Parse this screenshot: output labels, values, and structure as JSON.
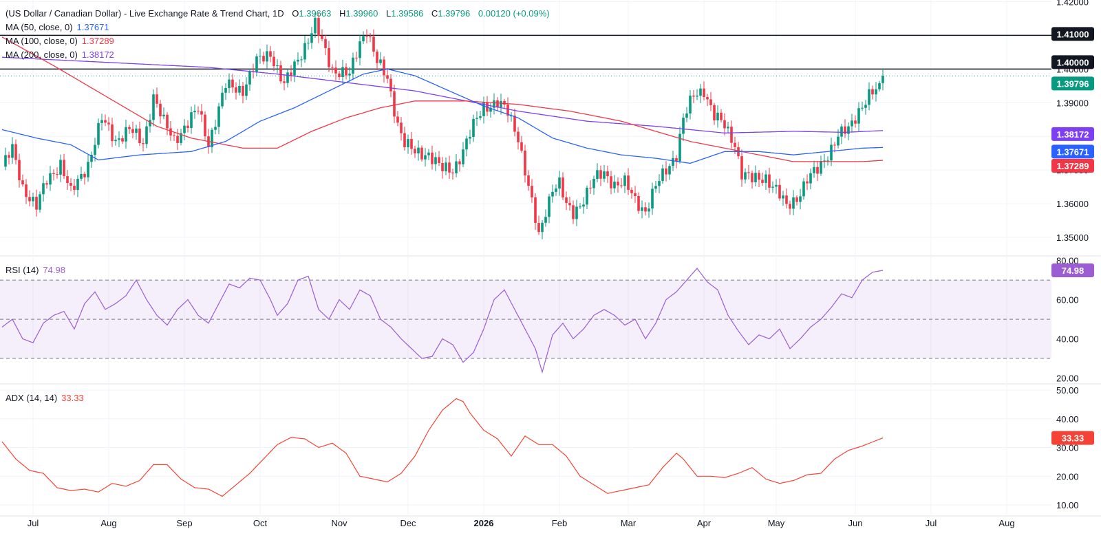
{
  "header": {
    "title": "(US Dollar / Canadian Dollar) - Live Exchange Rate & Trend Chart, 1D",
    "open_label": "O",
    "open": "1.39663",
    "high_label": "H",
    "high": "1.39960",
    "low_label": "L",
    "low": "1.39586",
    "close_label": "C",
    "close": "1.39796",
    "change": "0.00120 (+0.09%)"
  },
  "legend": {
    "ma50_label": "MA (50, close, 0)",
    "ma50_value": "1.37671",
    "ma100_label": "MA (100, close, 0)",
    "ma100_value": "1.37289",
    "ma200_label": "MA (200, close, 0)",
    "ma200_value": "1.38172"
  },
  "rsi_panel": {
    "label": "RSI (14)",
    "value": "74.98"
  },
  "adx_panel": {
    "label": "ADX (14, 14)",
    "value": "33.33"
  },
  "colors": {
    "up": "#089981",
    "down": "#f23645",
    "ma50": "#2962ff",
    "ma100": "#f23645",
    "ma200": "#7e3ff2",
    "rsi": "#9c5cd4",
    "adx": "#f44336",
    "grid": "#f0f3fa",
    "axis_text": "#131722",
    "level": "#131722"
  },
  "chart_data": [
    {
      "type": "candlestick",
      "title": "(US Dollar / Canadian Dollar) - Live Exchange Rate & Trend Chart, 1D",
      "x_tick_labels": [
        "Jul",
        "Aug",
        "Sep",
        "Oct",
        "Nov",
        "Dec",
        "2026",
        "Feb",
        "Mar",
        "Apr",
        "May",
        "Jun",
        "Jul",
        "Aug"
      ],
      "y_ticks": [
        1.35,
        1.36,
        1.37,
        1.38,
        1.39,
        1.4,
        1.41,
        1.42
      ],
      "y_tick_labels": [
        "1.35000",
        "1.36000",
        "1.37000",
        "1.38000",
        "1.39000",
        "1.40000",
        "1.41000",
        "1.42000"
      ],
      "ylim": [
        1.3445,
        1.4205
      ],
      "price_path": [
        [
          0,
          1.371
        ],
        [
          3,
          1.376
        ],
        [
          6,
          1.365
        ],
        [
          10,
          1.359
        ],
        [
          13,
          1.367
        ],
        [
          17,
          1.372
        ],
        [
          20,
          1.363
        ],
        [
          25,
          1.372
        ],
        [
          29,
          1.385
        ],
        [
          33,
          1.379
        ],
        [
          37,
          1.382
        ],
        [
          41,
          1.378
        ],
        [
          44,
          1.392
        ],
        [
          47,
          1.384
        ],
        [
          50,
          1.379
        ],
        [
          54,
          1.384
        ],
        [
          57,
          1.388
        ],
        [
          60,
          1.378
        ],
        [
          65,
          1.395
        ],
        [
          70,
          1.394
        ],
        [
          74,
          1.402
        ],
        [
          78,
          1.405
        ],
        [
          82,
          1.395
        ],
        [
          86,
          1.403
        ],
        [
          88,
          1.407
        ],
        [
          91,
          1.413
        ],
        [
          96,
          1.4
        ],
        [
          101,
          1.398
        ],
        [
          104,
          1.408
        ],
        [
          106,
          1.412
        ],
        [
          109,
          1.402
        ],
        [
          112,
          1.397
        ],
        [
          115,
          1.384
        ],
        [
          117,
          1.378
        ],
        [
          120,
          1.375
        ],
        [
          124,
          1.375
        ],
        [
          128,
          1.37
        ],
        [
          131,
          1.37
        ],
        [
          134,
          1.376
        ],
        [
          137,
          1.383
        ],
        [
          140,
          1.389
        ],
        [
          144,
          1.39
        ],
        [
          147,
          1.387
        ],
        [
          150,
          1.38
        ],
        [
          152,
          1.37
        ],
        [
          154,
          1.36
        ],
        [
          156,
          1.35
        ],
        [
          158,
          1.358
        ],
        [
          160,
          1.365
        ],
        [
          162,
          1.366
        ],
        [
          164,
          1.359
        ],
        [
          166,
          1.357
        ],
        [
          168,
          1.36
        ],
        [
          172,
          1.367
        ],
        [
          175,
          1.369
        ],
        [
          178,
          1.366
        ],
        [
          181,
          1.366
        ],
        [
          184,
          1.361
        ],
        [
          187,
          1.358
        ],
        [
          190,
          1.365
        ],
        [
          193,
          1.37
        ],
        [
          196,
          1.375
        ],
        [
          198,
          1.385
        ],
        [
          201,
          1.392
        ],
        [
          204,
          1.394
        ],
        [
          207,
          1.386
        ],
        [
          210,
          1.383
        ],
        [
          213,
          1.378
        ],
        [
          215,
          1.369
        ],
        [
          218,
          1.367
        ],
        [
          222,
          1.368
        ],
        [
          225,
          1.364
        ],
        [
          228,
          1.359
        ],
        [
          231,
          1.362
        ],
        [
          234,
          1.367
        ],
        [
          237,
          1.37
        ],
        [
          240,
          1.375
        ],
        [
          243,
          1.38
        ],
        [
          246,
          1.382
        ],
        [
          249,
          1.388
        ],
        [
          252,
          1.392
        ],
        [
          255,
          1.394
        ],
        [
          256,
          1.398
        ]
      ],
      "ma50_path": [
        [
          0,
          1.382
        ],
        [
          10,
          1.3795
        ],
        [
          20,
          1.3775
        ],
        [
          28,
          1.373
        ],
        [
          40,
          1.3745
        ],
        [
          55,
          1.3755
        ],
        [
          65,
          1.3785
        ],
        [
          75,
          1.3845
        ],
        [
          85,
          1.3885
        ],
        [
          95,
          1.3935
        ],
        [
          105,
          1.3985
        ],
        [
          112,
          1.4
        ],
        [
          120,
          1.398
        ],
        [
          130,
          1.3935
        ],
        [
          140,
          1.389
        ],
        [
          150,
          1.3855
        ],
        [
          160,
          1.3795
        ],
        [
          170,
          1.3765
        ],
        [
          180,
          1.3745
        ],
        [
          190,
          1.3735
        ],
        [
          200,
          1.372
        ],
        [
          210,
          1.3755
        ],
        [
          220,
          1.3755
        ],
        [
          230,
          1.3745
        ],
        [
          240,
          1.3755
        ],
        [
          250,
          1.3765
        ],
        [
          256,
          1.37671
        ]
      ],
      "ma100_path": [
        [
          0,
          1.4095
        ],
        [
          15,
          1.401
        ],
        [
          30,
          1.392
        ],
        [
          45,
          1.383
        ],
        [
          55,
          1.3795
        ],
        [
          70,
          1.3765
        ],
        [
          80,
          1.3765
        ],
        [
          90,
          1.3815
        ],
        [
          100,
          1.3855
        ],
        [
          110,
          1.3885
        ],
        [
          120,
          1.3905
        ],
        [
          135,
          1.3905
        ],
        [
          150,
          1.3895
        ],
        [
          165,
          1.3875
        ],
        [
          180,
          1.3845
        ],
        [
          190,
          1.3815
        ],
        [
          200,
          1.3785
        ],
        [
          210,
          1.3765
        ],
        [
          220,
          1.3745
        ],
        [
          230,
          1.3725
        ],
        [
          240,
          1.3725
        ],
        [
          250,
          1.3725
        ],
        [
          256,
          1.37289
        ]
      ],
      "ma200_path": [
        [
          0,
          1.4035
        ],
        [
          20,
          1.4025
        ],
        [
          40,
          1.4015
        ],
        [
          60,
          1.4005
        ],
        [
          80,
          1.3985
        ],
        [
          100,
          1.396
        ],
        [
          120,
          1.3935
        ],
        [
          135,
          1.3905
        ],
        [
          150,
          1.3875
        ],
        [
          170,
          1.3845
        ],
        [
          190,
          1.383
        ],
        [
          210,
          1.381
        ],
        [
          230,
          1.3815
        ],
        [
          245,
          1.3812
        ],
        [
          256,
          1.38172
        ]
      ],
      "levels": [
        {
          "value": 1.41,
          "label": "1.41000"
        },
        {
          "value": 1.4,
          "label": "1.40000"
        }
      ],
      "current_price": {
        "value": 1.39796,
        "label": "1.39796"
      },
      "ma_badges": [
        {
          "value": 1.38172,
          "label": "1.38172",
          "series": "ma200"
        },
        {
          "value": 1.37671,
          "label": "1.37671",
          "series": "ma50"
        },
        {
          "value": 1.37289,
          "label": "1.37289",
          "series": "ma100"
        }
      ]
    },
    {
      "type": "line",
      "title": "RSI (14)",
      "y_tick_labels": [
        "20.00",
        "40.00",
        "60.00",
        "80.00"
      ],
      "y_ticks": [
        20,
        40,
        60,
        80
      ],
      "ylim": [
        17,
        82
      ],
      "bands": [
        70,
        50,
        30
      ],
      "values": [
        [
          0,
          46
        ],
        [
          3,
          50
        ],
        [
          6,
          40
        ],
        [
          9,
          38
        ],
        [
          12,
          48
        ],
        [
          15,
          52
        ],
        [
          18,
          54
        ],
        [
          21,
          45
        ],
        [
          24,
          58
        ],
        [
          27,
          64
        ],
        [
          30,
          55
        ],
        [
          33,
          58
        ],
        [
          36,
          62
        ],
        [
          39,
          70
        ],
        [
          42,
          60
        ],
        [
          45,
          52
        ],
        [
          48,
          47
        ],
        [
          51,
          55
        ],
        [
          54,
          60
        ],
        [
          57,
          52
        ],
        [
          60,
          48
        ],
        [
          63,
          58
        ],
        [
          66,
          68
        ],
        [
          69,
          66
        ],
        [
          72,
          71
        ],
        [
          75,
          70
        ],
        [
          78,
          60
        ],
        [
          80,
          52
        ],
        [
          83,
          58
        ],
        [
          86,
          70
        ],
        [
          89,
          72
        ],
        [
          92,
          55
        ],
        [
          95,
          50
        ],
        [
          98,
          60
        ],
        [
          101,
          55
        ],
        [
          104,
          65
        ],
        [
          107,
          62
        ],
        [
          110,
          50
        ],
        [
          113,
          46
        ],
        [
          116,
          40
        ],
        [
          119,
          35
        ],
        [
          122,
          30
        ],
        [
          125,
          31
        ],
        [
          128,
          40
        ],
        [
          131,
          37
        ],
        [
          134,
          28
        ],
        [
          137,
          33
        ],
        [
          140,
          45
        ],
        [
          143,
          60
        ],
        [
          146,
          65
        ],
        [
          149,
          55
        ],
        [
          152,
          45
        ],
        [
          155,
          35
        ],
        [
          157,
          23
        ],
        [
          160,
          42
        ],
        [
          163,
          48
        ],
        [
          166,
          40
        ],
        [
          169,
          45
        ],
        [
          172,
          52
        ],
        [
          175,
          55
        ],
        [
          178,
          52
        ],
        [
          181,
          47
        ],
        [
          184,
          50
        ],
        [
          187,
          40
        ],
        [
          190,
          48
        ],
        [
          193,
          60
        ],
        [
          196,
          64
        ],
        [
          199,
          70
        ],
        [
          202,
          76
        ],
        [
          205,
          69
        ],
        [
          208,
          65
        ],
        [
          211,
          52
        ],
        [
          214,
          44
        ],
        [
          217,
          37
        ],
        [
          220,
          42
        ],
        [
          223,
          40
        ],
        [
          226,
          45
        ],
        [
          229,
          35
        ],
        [
          232,
          40
        ],
        [
          235,
          46
        ],
        [
          238,
          50
        ],
        [
          241,
          56
        ],
        [
          244,
          63
        ],
        [
          247,
          61
        ],
        [
          250,
          70
        ],
        [
          253,
          74
        ],
        [
          256,
          74.98
        ]
      ]
    },
    {
      "type": "line",
      "title": "ADX (14, 14)",
      "y_tick_labels": [
        "10.00",
        "20.00",
        "30.00",
        "40.00",
        "50.00"
      ],
      "y_ticks": [
        10,
        20,
        30,
        40,
        50
      ],
      "ylim": [
        10,
        50
      ],
      "values": [
        [
          0,
          32
        ],
        [
          4,
          26
        ],
        [
          8,
          22
        ],
        [
          12,
          21
        ],
        [
          16,
          16
        ],
        [
          20,
          15
        ],
        [
          24,
          15.5
        ],
        [
          28,
          14.5
        ],
        [
          32,
          17.5
        ],
        [
          36,
          16.5
        ],
        [
          40,
          18.5
        ],
        [
          44,
          24
        ],
        [
          48,
          24
        ],
        [
          52,
          19
        ],
        [
          56,
          16
        ],
        [
          60,
          15.5
        ],
        [
          64,
          13
        ],
        [
          68,
          17
        ],
        [
          72,
          21
        ],
        [
          76,
          26
        ],
        [
          80,
          31
        ],
        [
          84,
          33.5
        ],
        [
          88,
          33
        ],
        [
          92,
          30
        ],
        [
          96,
          31.5
        ],
        [
          100,
          28
        ],
        [
          104,
          20
        ],
        [
          108,
          19
        ],
        [
          112,
          18
        ],
        [
          116,
          21
        ],
        [
          120,
          27
        ],
        [
          124,
          36
        ],
        [
          128,
          43
        ],
        [
          132,
          47
        ],
        [
          134,
          46
        ],
        [
          136,
          42
        ],
        [
          140,
          36
        ],
        [
          144,
          33
        ],
        [
          148,
          27
        ],
        [
          152,
          34
        ],
        [
          156,
          31
        ],
        [
          160,
          31
        ],
        [
          164,
          27
        ],
        [
          168,
          20
        ],
        [
          172,
          17
        ],
        [
          176,
          14
        ],
        [
          180,
          15
        ],
        [
          184,
          16
        ],
        [
          188,
          17
        ],
        [
          192,
          23
        ],
        [
          196,
          28
        ],
        [
          198,
          26
        ],
        [
          202,
          20
        ],
        [
          206,
          20
        ],
        [
          210,
          19.5
        ],
        [
          214,
          21
        ],
        [
          218,
          23
        ],
        [
          222,
          19
        ],
        [
          226,
          17.5
        ],
        [
          230,
          18.5
        ],
        [
          234,
          20.5
        ],
        [
          238,
          21
        ],
        [
          242,
          26
        ],
        [
          246,
          29
        ],
        [
          250,
          30.5
        ],
        [
          256,
          33.33
        ]
      ],
      "current": {
        "value": 33.33,
        "label": "33.33"
      }
    }
  ]
}
